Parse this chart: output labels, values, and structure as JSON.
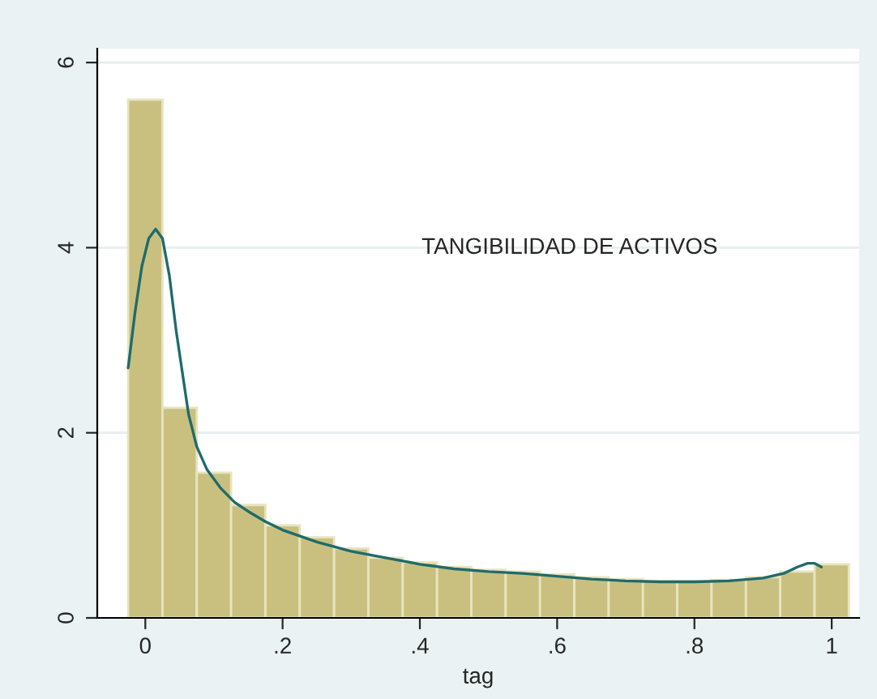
{
  "chart_data": {
    "type": "histogram",
    "xlabel": "tag",
    "bins": [
      -0.025,
      0.025,
      0.075,
      0.125,
      0.175,
      0.225,
      0.275,
      0.325,
      0.375,
      0.425,
      0.475,
      0.525,
      0.575,
      0.625,
      0.675,
      0.725,
      0.775,
      0.825,
      0.875,
      0.925,
      0.975,
      1.025
    ],
    "values": [
      5.6,
      2.27,
      1.57,
      1.22,
      1.0,
      0.87,
      0.75,
      0.65,
      0.6,
      0.55,
      0.52,
      0.5,
      0.47,
      0.44,
      0.42,
      0.4,
      0.4,
      0.41,
      0.44,
      0.5,
      0.58
    ],
    "color": "#c9c080",
    "series": [
      {
        "type": "line",
        "color": "#1f6b6b",
        "x": [
          -0.025,
          -0.015,
          -0.005,
          0.005,
          0.015,
          0.025,
          0.035,
          0.045,
          0.055,
          0.063,
          0.075,
          0.09,
          0.11,
          0.13,
          0.15,
          0.175,
          0.2,
          0.25,
          0.3,
          0.35,
          0.4,
          0.45,
          0.5,
          0.55,
          0.6,
          0.65,
          0.7,
          0.75,
          0.8,
          0.85,
          0.9,
          0.93,
          0.95,
          0.965,
          0.975,
          0.985
        ],
        "values": [
          2.7,
          3.3,
          3.8,
          4.1,
          4.2,
          4.1,
          3.7,
          3.1,
          2.6,
          2.2,
          1.85,
          1.6,
          1.4,
          1.25,
          1.15,
          1.04,
          0.95,
          0.82,
          0.72,
          0.65,
          0.58,
          0.53,
          0.5,
          0.48,
          0.45,
          0.42,
          0.4,
          0.39,
          0.39,
          0.4,
          0.43,
          0.48,
          0.55,
          0.59,
          0.59,
          0.55
        ]
      }
    ],
    "xlim": [
      -0.07,
      1.04
    ],
    "ylim": [
      0,
      6.15
    ],
    "xticks": [
      0,
      {
        "value": 0.2,
        "label": ".2"
      },
      {
        "value": 0.4,
        "label": ".4"
      },
      {
        "value": 0.6,
        "label": ".6"
      },
      {
        "value": 0.8,
        "label": ".8"
      },
      1
    ],
    "yticks": [
      0,
      2,
      4,
      6
    ],
    "grid": "y",
    "legend": false,
    "annotations": [
      "TANGIBILIDAD DE ACTIVOS"
    ]
  }
}
